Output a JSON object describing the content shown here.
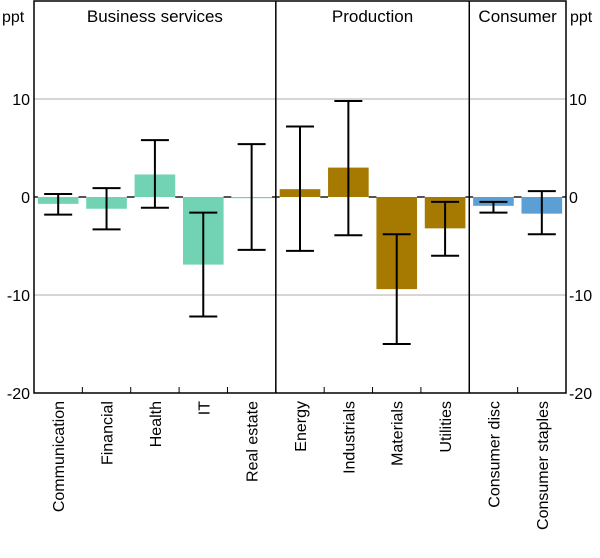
{
  "chart_data": {
    "type": "bar",
    "title": "",
    "xlabel": "",
    "ylabel": "ppt",
    "ylabel_right": "ppt",
    "ylim": [
      -20,
      20
    ],
    "yticks": [
      -20,
      -10,
      0,
      10
    ],
    "ytick_labels": [
      "-20",
      "-10",
      "0",
      "10"
    ],
    "grid": true,
    "groups": [
      {
        "name": "Business services",
        "color": "#72d3b4",
        "categories": [
          "Communication",
          "Financial",
          "Health",
          "IT",
          "Real estate"
        ]
      },
      {
        "name": "Production",
        "color": "#a67a00",
        "categories": [
          "Energy",
          "Industrials",
          "Materials",
          "Utilities"
        ]
      },
      {
        "name": "Consumer",
        "color": "#5b9fd4",
        "categories": [
          "Consumer disc",
          "Consumer staples"
        ]
      }
    ],
    "categories": [
      "Communication",
      "Financial",
      "Health",
      "IT",
      "Real estate",
      "Energy",
      "Industrials",
      "Materials",
      "Utilities",
      "Consumer disc",
      "Consumer staples"
    ],
    "values": [
      -0.7,
      -1.2,
      2.3,
      -6.9,
      -0.1,
      0.8,
      3.0,
      -9.4,
      -3.2,
      -0.9,
      -1.7
    ],
    "error_upper": [
      0.3,
      0.9,
      5.8,
      -1.6,
      5.4,
      7.2,
      9.8,
      -3.8,
      -0.5,
      -0.5,
      0.6
    ],
    "error_lower": [
      -1.8,
      -3.3,
      -1.1,
      -12.2,
      -5.4,
      -5.5,
      -3.9,
      -15.0,
      -6.0,
      -1.6,
      -3.8
    ]
  }
}
